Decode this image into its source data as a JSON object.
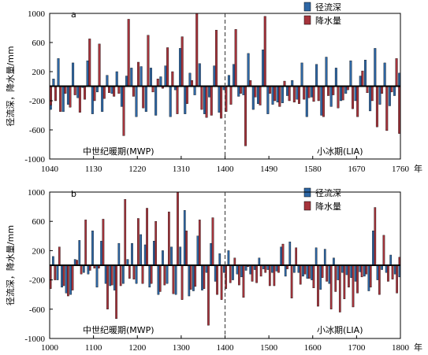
{
  "colors": {
    "runoff": "#2e67a5",
    "precip": "#a6343c",
    "axis": "#000000"
  },
  "chart_data": [
    {
      "type": "bar",
      "panel_label": "a",
      "ylabel": "径流深，降水量/mm",
      "x_unit": "年",
      "ylim": [
        -1000,
        1000
      ],
      "xlim": [
        1040,
        1760
      ],
      "y_ticks": [
        "1000",
        "600",
        "200",
        "-200",
        "-600",
        "-1000"
      ],
      "x_ticks": [
        "1040",
        "1130",
        "1220",
        "1310",
        "1400",
        "1490",
        "1580",
        "1670",
        "1760"
      ],
      "legend": [
        "径流深",
        "降水量"
      ],
      "divider_year": 1400,
      "period_labels": [
        "中世纪暖期(MWP)",
        "小冰期(LIA)"
      ],
      "years": [
        1040,
        1050,
        1060,
        1070,
        1080,
        1090,
        1100,
        1110,
        1120,
        1130,
        1140,
        1150,
        1160,
        1170,
        1180,
        1190,
        1200,
        1210,
        1220,
        1230,
        1240,
        1250,
        1260,
        1270,
        1280,
        1290,
        1300,
        1310,
        1320,
        1330,
        1340,
        1350,
        1360,
        1370,
        1380,
        1390,
        1400,
        1410,
        1420,
        1430,
        1440,
        1450,
        1460,
        1470,
        1480,
        1490,
        1500,
        1510,
        1520,
        1530,
        1540,
        1550,
        1560,
        1570,
        1580,
        1590,
        1600,
        1610,
        1620,
        1630,
        1640,
        1650,
        1660,
        1670,
        1680,
        1690,
        1700,
        1710,
        1720,
        1730,
        1740,
        1750,
        1760
      ],
      "series": [
        {
          "name": "径流深",
          "values": [
            -320,
            100,
            380,
            -350,
            -250,
            320,
            -160,
            -20,
            350,
            -380,
            -80,
            -350,
            150,
            -100,
            200,
            -280,
            140,
            250,
            -420,
            270,
            -350,
            250,
            -400,
            130,
            280,
            -420,
            -50,
            520,
            -380,
            180,
            -120,
            310,
            -380,
            -150,
            280,
            -360,
            -50,
            150,
            300,
            -140,
            -120,
            450,
            -320,
            -240,
            500,
            -380,
            -250,
            -220,
            -230,
            -130,
            80,
            -180,
            320,
            -420,
            -150,
            300,
            -400,
            400,
            -280,
            250,
            -200,
            -100,
            350,
            -200,
            140,
            360,
            -340,
            520,
            -250,
            320,
            -270,
            -130,
            180
          ]
        },
        {
          "name": "降水量",
          "values": [
            -260,
            -200,
            -350,
            -100,
            -290,
            -120,
            -360,
            -180,
            650,
            -200,
            580,
            -170,
            -90,
            -140,
            -100,
            -680,
            920,
            -140,
            330,
            -300,
            700,
            -80,
            100,
            -30,
            530,
            200,
            -380,
            680,
            -240,
            80,
            1080,
            -320,
            -430,
            -400,
            770,
            -440,
            -350,
            -250,
            780,
            -100,
            -820,
            80,
            -150,
            -260,
            960,
            -100,
            -200,
            -280,
            70,
            -200,
            -220,
            -240,
            -180,
            -160,
            -210,
            -200,
            -420,
            -130,
            -120,
            -300,
            -190,
            -50,
            -310,
            -420,
            210,
            -90,
            -200,
            -560,
            -100,
            -610,
            -80,
            380,
            -650
          ]
        }
      ]
    },
    {
      "type": "bar",
      "panel_label": "b",
      "ylabel": "径流深，降水量/mm",
      "x_unit": "年",
      "ylim": [
        -1000,
        1000
      ],
      "xlim": [
        1000,
        1800
      ],
      "y_ticks": [
        "1000",
        "600",
        "200",
        "-200",
        "-600",
        "-1000"
      ],
      "x_ticks": [
        "1000",
        "1100",
        "1200",
        "1300",
        "1400",
        "1500",
        "1600",
        "1700",
        "1800"
      ],
      "legend": [
        "径流深",
        "降水量"
      ],
      "divider_year": 1400,
      "period_labels": [
        "中世纪暖期(MWP)",
        "小冰期(LIA)"
      ],
      "years": [
        1000,
        1010,
        1020,
        1030,
        1040,
        1050,
        1060,
        1070,
        1080,
        1090,
        1100,
        1110,
        1120,
        1130,
        1140,
        1150,
        1160,
        1170,
        1180,
        1190,
        1200,
        1210,
        1220,
        1230,
        1240,
        1250,
        1260,
        1270,
        1280,
        1290,
        1300,
        1310,
        1320,
        1330,
        1340,
        1350,
        1360,
        1370,
        1380,
        1390,
        1400,
        1410,
        1420,
        1430,
        1440,
        1450,
        1460,
        1470,
        1480,
        1490,
        1500,
        1510,
        1520,
        1530,
        1540,
        1550,
        1560,
        1570,
        1580,
        1590,
        1600,
        1610,
        1620,
        1630,
        1640,
        1650,
        1660,
        1670,
        1680,
        1690,
        1700,
        1710,
        1720,
        1730,
        1740,
        1750,
        1760,
        1770,
        1780,
        1790,
        1800
      ],
      "series": [
        {
          "name": "径流深",
          "values": [
            -200,
            120,
            -200,
            -300,
            -380,
            -400,
            80,
            340,
            -100,
            -120,
            470,
            -300,
            330,
            -250,
            -280,
            -340,
            300,
            -250,
            80,
            300,
            -250,
            420,
            280,
            -300,
            330,
            -400,
            200,
            -250,
            250,
            -400,
            250,
            750,
            -420,
            -350,
            400,
            -340,
            -100,
            300,
            -220,
            160,
            -100,
            200,
            -200,
            -120,
            -160,
            -70,
            -120,
            -60,
            100,
            -50,
            -60,
            -100,
            -80,
            250,
            -150,
            320,
            -100,
            -100,
            -150,
            -180,
            -200,
            240,
            -330,
            220,
            -250,
            100,
            -200,
            -100,
            -130,
            -170,
            -220,
            -90,
            -150,
            -350,
            470,
            -200,
            -60,
            -100,
            140,
            -120,
            -160
          ]
        },
        {
          "name": "降水量",
          "values": [
            -320,
            -200,
            250,
            -280,
            -420,
            -340,
            70,
            -120,
            620,
            -70,
            -40,
            -40,
            630,
            -600,
            -270,
            -730,
            -280,
            900,
            -180,
            -190,
            640,
            -250,
            780,
            -250,
            600,
            -360,
            -270,
            730,
            -390,
            1050,
            -470,
            470,
            -330,
            -290,
            620,
            -320,
            -820,
            650,
            -400,
            -470,
            -320,
            -240,
            100,
            -270,
            -440,
            -20,
            -220,
            -240,
            -150,
            -100,
            -280,
            -280,
            -100,
            290,
            -50,
            -450,
            240,
            -260,
            -120,
            -180,
            -310,
            -560,
            -170,
            -220,
            -600,
            -360,
            -640,
            -460,
            -300,
            -570,
            -380,
            -160,
            -120,
            -300,
            790,
            -400,
            410,
            -220,
            -190,
            -380,
            110
          ]
        }
      ]
    }
  ]
}
